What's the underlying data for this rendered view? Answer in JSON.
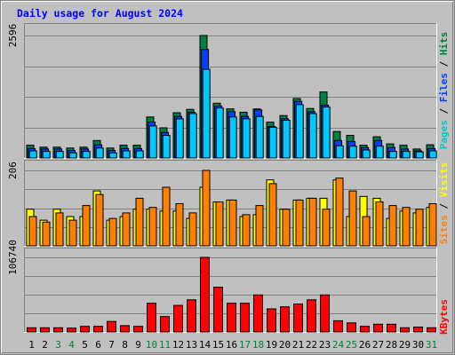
{
  "chart_data": {
    "type": "bar",
    "title": "Daily usage for August 2024",
    "categories": [
      "1",
      "2",
      "3",
      "4",
      "5",
      "6",
      "7",
      "8",
      "9",
      "10",
      "11",
      "12",
      "13",
      "14",
      "15",
      "16",
      "17",
      "18",
      "19",
      "20",
      "21",
      "22",
      "23",
      "24",
      "25",
      "26",
      "27",
      "28",
      "29",
      "30",
      "31"
    ],
    "weekend_days": [
      "3",
      "4",
      "10",
      "11",
      "17",
      "18",
      "24",
      "25",
      "31"
    ],
    "panels": {
      "hits_files_pages": {
        "max_label": "2596",
        "ymax": 2596,
        "axis_label_parts": [
          {
            "text": "Pages",
            "color": "#00c8c8"
          },
          {
            "text": " / ",
            "color": "#000000"
          },
          {
            "text": "Files",
            "color": "#0040ff"
          },
          {
            "text": " / ",
            "color": "#000000"
          },
          {
            "text": "Hits",
            "color": "#008040"
          }
        ],
        "series": [
          {
            "name": "Hits",
            "color": "#008040",
            "values": [
              270,
              230,
              230,
              210,
              230,
              370,
              210,
              270,
              270,
              870,
              640,
              960,
              1030,
              2596,
              1160,
              1040,
              970,
              1040,
              760,
              900,
              1260,
              1050,
              1400,
              560,
              480,
              270,
              450,
              300,
              270,
              190,
              280
            ]
          },
          {
            "name": "Files",
            "color": "#0040ff",
            "values": [
              200,
              190,
              190,
              160,
              190,
              280,
              160,
              200,
              200,
              760,
              540,
              880,
              970,
              2300,
              1100,
              980,
              880,
              1020,
              670,
              830,
              1200,
              980,
              1120,
              370,
              350,
              220,
              370,
              220,
              190,
              150,
              200
            ]
          },
          {
            "name": "Pages",
            "color": "#00c8ff",
            "values": [
              150,
              140,
              140,
              110,
              140,
              210,
              110,
              150,
              150,
              680,
              480,
              830,
              940,
              1880,
              1060,
              870,
              830,
              880,
              650,
              800,
              1130,
              940,
              1080,
              260,
              250,
              170,
              250,
              140,
              140,
              130,
              150
            ]
          }
        ]
      },
      "visits_sites": {
        "max_label": "206",
        "ymax": 206,
        "axis_label_parts": [
          {
            "text": "Sites",
            "color": "#ff8000"
          },
          {
            "text": " / ",
            "color": "#000000"
          },
          {
            "text": "Visits",
            "color": "#ffff00"
          }
        ],
        "series": [
          {
            "name": "Visits",
            "color": "#ffff00",
            "values": [
              100,
              70,
              100,
              80,
              80,
              150,
              70,
              80,
              100,
              100,
              95,
              95,
              75,
              160,
              120,
              125,
              80,
              85,
              180,
              100,
              125,
              130,
              130,
              180,
              80,
              135,
              130,
              75,
              95,
              90,
              105
            ]
          },
          {
            "name": "Sites",
            "color": "#ff8000",
            "values": [
              80,
              65,
              90,
              70,
              110,
              140,
              75,
              90,
              130,
              105,
              160,
              115,
              90,
              206,
              120,
              125,
              85,
              110,
              170,
              100,
              125,
              130,
              100,
              185,
              150,
              80,
              120,
              110,
              105,
              100,
              115
            ]
          }
        ]
      },
      "kbytes": {
        "max_label": "106740",
        "ymax": 106740,
        "axis_label_parts": [
          {
            "text": "KBytes",
            "color": "#ff0000"
          }
        ],
        "series": [
          {
            "name": "KBytes",
            "color": "#ff0000",
            "values": [
              6000,
              6000,
              6000,
              5500,
              8000,
              8000,
              15000,
              9000,
              8000,
              41000,
              22000,
              38000,
              46000,
              106740,
              64000,
              41000,
              41000,
              53000,
              33000,
              36000,
              40000,
              46000,
              53000,
              16000,
              13000,
              8000,
              11000,
              11000,
              6000,
              7000,
              6000
            ]
          }
        ]
      }
    }
  }
}
